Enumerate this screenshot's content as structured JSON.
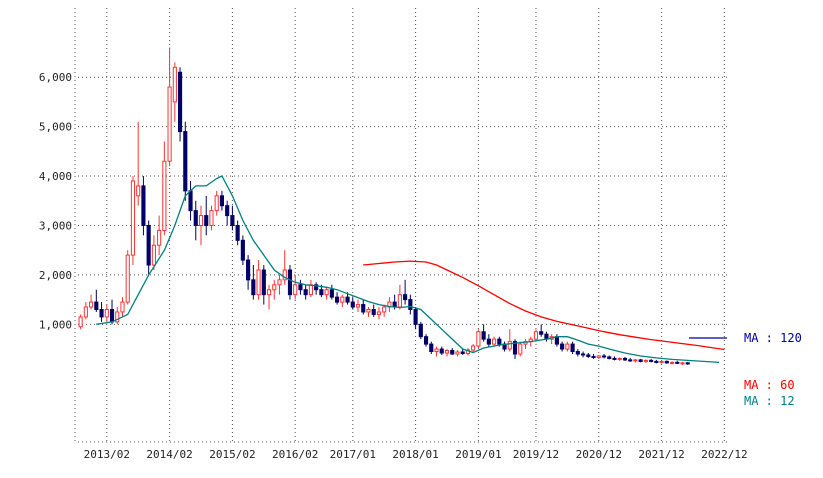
{
  "chart_data": {
    "type": "candlestick",
    "title": "",
    "xlabel": "",
    "ylabel": "",
    "ylim": [
      -1300,
      7400
    ],
    "grid": true,
    "y_ticks": [
      1000,
      2000,
      3000,
      4000,
      5000,
      6000
    ],
    "y_tick_labels": [
      "1,000",
      "2,000",
      "3,000",
      "4,000",
      "5,000",
      "6,000"
    ],
    "x_tick_labels": [
      "2013/02",
      "2014/02",
      "2015/02",
      "2016/02",
      "2017/01",
      "2018/01",
      "2019/01",
      "2019/12",
      "2020/12",
      "2021/12",
      "2022/12"
    ],
    "x_tick_pos": [
      5,
      17,
      29,
      41,
      52,
      64,
      76,
      87,
      99,
      111,
      123
    ],
    "x_range": [
      -0.5,
      123.5
    ],
    "colors": {
      "up": "#ff3333",
      "down": "#000066",
      "ma12": "#008080",
      "ma60": "#ff0000",
      "ma120": "#000099"
    },
    "candles": [
      {
        "o": 950,
        "h": 1200,
        "l": 900,
        "c": 1150
      },
      {
        "o": 1150,
        "h": 1450,
        "l": 1100,
        "c": 1350
      },
      {
        "o": 1350,
        "h": 1600,
        "l": 1300,
        "c": 1450
      },
      {
        "o": 1450,
        "h": 1700,
        "l": 1250,
        "c": 1300
      },
      {
        "o": 1300,
        "h": 1450,
        "l": 1050,
        "c": 1150
      },
      {
        "o": 1150,
        "h": 1400,
        "l": 1050,
        "c": 1300
      },
      {
        "o": 1300,
        "h": 1500,
        "l": 1000,
        "c": 1050
      },
      {
        "o": 1050,
        "h": 1350,
        "l": 1000,
        "c": 1250
      },
      {
        "o": 1250,
        "h": 1550,
        "l": 1150,
        "c": 1450
      },
      {
        "o": 1450,
        "h": 2500,
        "l": 1400,
        "c": 2400
      },
      {
        "o": 2400,
        "h": 4000,
        "l": 2200,
        "c": 3900
      },
      {
        "o": 3600,
        "h": 5100,
        "l": 3400,
        "c": 3800
      },
      {
        "o": 3800,
        "h": 4000,
        "l": 2800,
        "c": 3000
      },
      {
        "o": 3000,
        "h": 3100,
        "l": 2000,
        "c": 2200
      },
      {
        "o": 2200,
        "h": 2800,
        "l": 2100,
        "c": 2600
      },
      {
        "o": 2600,
        "h": 3200,
        "l": 2400,
        "c": 2900
      },
      {
        "o": 2900,
        "h": 4700,
        "l": 2800,
        "c": 4300
      },
      {
        "o": 4300,
        "h": 6600,
        "l": 4200,
        "c": 5800
      },
      {
        "o": 5500,
        "h": 6300,
        "l": 5100,
        "c": 6200
      },
      {
        "o": 6100,
        "h": 6200,
        "l": 4700,
        "c": 4900
      },
      {
        "o": 4900,
        "h": 5100,
        "l": 3500,
        "c": 3700
      },
      {
        "o": 3700,
        "h": 3900,
        "l": 3100,
        "c": 3300
      },
      {
        "o": 3300,
        "h": 3500,
        "l": 2700,
        "c": 3000
      },
      {
        "o": 3000,
        "h": 3400,
        "l": 2600,
        "c": 3200
      },
      {
        "o": 3200,
        "h": 3600,
        "l": 2800,
        "c": 3000
      },
      {
        "o": 3000,
        "h": 3400,
        "l": 2900,
        "c": 3300
      },
      {
        "o": 3300,
        "h": 3700,
        "l": 3200,
        "c": 3600
      },
      {
        "o": 3600,
        "h": 3700,
        "l": 3300,
        "c": 3400
      },
      {
        "o": 3400,
        "h": 3500,
        "l": 3000,
        "c": 3200
      },
      {
        "o": 3200,
        "h": 3400,
        "l": 2900,
        "c": 3000
      },
      {
        "o": 3000,
        "h": 3100,
        "l": 2600,
        "c": 2700
      },
      {
        "o": 2700,
        "h": 2800,
        "l": 2200,
        "c": 2300
      },
      {
        "o": 2300,
        "h": 2400,
        "l": 1700,
        "c": 1900
      },
      {
        "o": 1900,
        "h": 2200,
        "l": 1500,
        "c": 1600
      },
      {
        "o": 1600,
        "h": 2300,
        "l": 1500,
        "c": 2100
      },
      {
        "o": 2100,
        "h": 2200,
        "l": 1400,
        "c": 1600
      },
      {
        "o": 1600,
        "h": 1800,
        "l": 1300,
        "c": 1700
      },
      {
        "o": 1700,
        "h": 1900,
        "l": 1500,
        "c": 1800
      },
      {
        "o": 1800,
        "h": 2000,
        "l": 1600,
        "c": 1900
      },
      {
        "o": 1900,
        "h": 2500,
        "l": 1800,
        "c": 2100
      },
      {
        "o": 2100,
        "h": 2200,
        "l": 1500,
        "c": 1600
      },
      {
        "o": 1600,
        "h": 2000,
        "l": 1500,
        "c": 1800
      },
      {
        "o": 1800,
        "h": 1900,
        "l": 1600,
        "c": 1700
      },
      {
        "o": 1700,
        "h": 1800,
        "l": 1500,
        "c": 1600
      },
      {
        "o": 1600,
        "h": 1900,
        "l": 1550,
        "c": 1800
      },
      {
        "o": 1800,
        "h": 1850,
        "l": 1600,
        "c": 1700
      },
      {
        "o": 1700,
        "h": 1800,
        "l": 1550,
        "c": 1600
      },
      {
        "o": 1600,
        "h": 1750,
        "l": 1500,
        "c": 1700
      },
      {
        "o": 1700,
        "h": 1800,
        "l": 1500,
        "c": 1550
      },
      {
        "o": 1550,
        "h": 1650,
        "l": 1400,
        "c": 1450
      },
      {
        "o": 1450,
        "h": 1600,
        "l": 1350,
        "c": 1550
      },
      {
        "o": 1550,
        "h": 1650,
        "l": 1400,
        "c": 1450
      },
      {
        "o": 1450,
        "h": 1550,
        "l": 1300,
        "c": 1350
      },
      {
        "o": 1350,
        "h": 1500,
        "l": 1250,
        "c": 1400
      },
      {
        "o": 1400,
        "h": 1500,
        "l": 1200,
        "c": 1250
      },
      {
        "o": 1250,
        "h": 1350,
        "l": 1150,
        "c": 1300
      },
      {
        "o": 1300,
        "h": 1400,
        "l": 1150,
        "c": 1200
      },
      {
        "o": 1200,
        "h": 1350,
        "l": 1100,
        "c": 1250
      },
      {
        "o": 1250,
        "h": 1400,
        "l": 1150,
        "c": 1350
      },
      {
        "o": 1350,
        "h": 1550,
        "l": 1250,
        "c": 1450
      },
      {
        "o": 1450,
        "h": 1600,
        "l": 1300,
        "c": 1350
      },
      {
        "o": 1350,
        "h": 1800,
        "l": 1300,
        "c": 1600
      },
      {
        "o": 1600,
        "h": 1900,
        "l": 1400,
        "c": 1500
      },
      {
        "o": 1500,
        "h": 1600,
        "l": 1200,
        "c": 1300
      },
      {
        "o": 1300,
        "h": 1350,
        "l": 900,
        "c": 1000
      },
      {
        "o": 1000,
        "h": 1050,
        "l": 700,
        "c": 750
      },
      {
        "o": 750,
        "h": 800,
        "l": 550,
        "c": 600
      },
      {
        "o": 600,
        "h": 650,
        "l": 400,
        "c": 450
      },
      {
        "o": 450,
        "h": 550,
        "l": 350,
        "c": 500
      },
      {
        "o": 500,
        "h": 550,
        "l": 380,
        "c": 420
      },
      {
        "o": 420,
        "h": 500,
        "l": 350,
        "c": 470
      },
      {
        "o": 470,
        "h": 520,
        "l": 380,
        "c": 400
      },
      {
        "o": 400,
        "h": 480,
        "l": 350,
        "c": 440
      },
      {
        "o": 440,
        "h": 500,
        "l": 380,
        "c": 410
      },
      {
        "o": 410,
        "h": 520,
        "l": 370,
        "c": 480
      },
      {
        "o": 480,
        "h": 600,
        "l": 420,
        "c": 560
      },
      {
        "o": 560,
        "h": 900,
        "l": 520,
        "c": 850
      },
      {
        "o": 850,
        "h": 1000,
        "l": 650,
        "c": 700
      },
      {
        "o": 700,
        "h": 800,
        "l": 550,
        "c": 600
      },
      {
        "o": 600,
        "h": 750,
        "l": 550,
        "c": 700
      },
      {
        "o": 700,
        "h": 750,
        "l": 550,
        "c": 600
      },
      {
        "o": 600,
        "h": 650,
        "l": 450,
        "c": 500
      },
      {
        "o": 500,
        "h": 900,
        "l": 450,
        "c": 650
      },
      {
        "o": 650,
        "h": 700,
        "l": 300,
        "c": 400
      },
      {
        "o": 400,
        "h": 650,
        "l": 350,
        "c": 600
      },
      {
        "o": 600,
        "h": 700,
        "l": 500,
        "c": 650
      },
      {
        "o": 650,
        "h": 750,
        "l": 550,
        "c": 700
      },
      {
        "o": 700,
        "h": 900,
        "l": 650,
        "c": 850
      },
      {
        "o": 850,
        "h": 1000,
        "l": 750,
        "c": 800
      },
      {
        "o": 800,
        "h": 850,
        "l": 650,
        "c": 700
      },
      {
        "o": 700,
        "h": 800,
        "l": 600,
        "c": 750
      },
      {
        "o": 750,
        "h": 800,
        "l": 550,
        "c": 600
      },
      {
        "o": 600,
        "h": 650,
        "l": 450,
        "c": 500
      },
      {
        "o": 500,
        "h": 650,
        "l": 450,
        "c": 600
      },
      {
        "o": 600,
        "h": 650,
        "l": 400,
        "c": 450
      },
      {
        "o": 450,
        "h": 500,
        "l": 350,
        "c": 400
      },
      {
        "o": 400,
        "h": 450,
        "l": 330,
        "c": 380
      },
      {
        "o": 380,
        "h": 420,
        "l": 320,
        "c": 350
      },
      {
        "o": 350,
        "h": 400,
        "l": 300,
        "c": 330
      },
      {
        "o": 330,
        "h": 380,
        "l": 300,
        "c": 360
      },
      {
        "o": 360,
        "h": 400,
        "l": 310,
        "c": 340
      },
      {
        "o": 340,
        "h": 370,
        "l": 290,
        "c": 310
      },
      {
        "o": 310,
        "h": 350,
        "l": 270,
        "c": 290
      },
      {
        "o": 290,
        "h": 330,
        "l": 260,
        "c": 310
      },
      {
        "o": 310,
        "h": 340,
        "l": 260,
        "c": 280
      },
      {
        "o": 280,
        "h": 320,
        "l": 240,
        "c": 260
      },
      {
        "o": 260,
        "h": 300,
        "l": 230,
        "c": 280
      },
      {
        "o": 280,
        "h": 300,
        "l": 230,
        "c": 250
      },
      {
        "o": 250,
        "h": 290,
        "l": 220,
        "c": 270
      },
      {
        "o": 270,
        "h": 300,
        "l": 230,
        "c": 250
      },
      {
        "o": 250,
        "h": 280,
        "l": 210,
        "c": 230
      },
      {
        "o": 230,
        "h": 270,
        "l": 210,
        "c": 250
      },
      {
        "o": 250,
        "h": 270,
        "l": 200,
        "c": 220
      },
      {
        "o": 220,
        "h": 250,
        "l": 190,
        "c": 230
      },
      {
        "o": 230,
        "h": 260,
        "l": 200,
        "c": 210
      },
      {
        "o": 210,
        "h": 240,
        "l": 180,
        "c": 220
      },
      {
        "o": 220,
        "h": 240,
        "l": 180,
        "c": 200
      }
    ],
    "series": [
      {
        "name": "MA : 12",
        "color": "#008080",
        "points": [
          [
            3,
            1000
          ],
          [
            6,
            1050
          ],
          [
            9,
            1200
          ],
          [
            11,
            1600
          ],
          [
            13,
            2000
          ],
          [
            16,
            2500
          ],
          [
            18,
            3000
          ],
          [
            20,
            3600
          ],
          [
            22,
            3800
          ],
          [
            24,
            3800
          ],
          [
            26,
            3950
          ],
          [
            27,
            4000
          ],
          [
            29,
            3600
          ],
          [
            31,
            3100
          ],
          [
            33,
            2700
          ],
          [
            35,
            2400
          ],
          [
            37,
            2100
          ],
          [
            39,
            1950
          ],
          [
            41,
            1850
          ],
          [
            43,
            1800
          ],
          [
            45,
            1780
          ],
          [
            47,
            1750
          ],
          [
            49,
            1700
          ],
          [
            51,
            1620
          ],
          [
            53,
            1540
          ],
          [
            55,
            1460
          ],
          [
            57,
            1400
          ],
          [
            59,
            1360
          ],
          [
            61,
            1340
          ],
          [
            63,
            1360
          ],
          [
            65,
            1300
          ],
          [
            67,
            1100
          ],
          [
            69,
            900
          ],
          [
            71,
            700
          ],
          [
            73,
            500
          ],
          [
            75,
            430
          ],
          [
            77,
            520
          ],
          [
            80,
            580
          ],
          [
            83,
            620
          ],
          [
            86,
            650
          ],
          [
            89,
            700
          ],
          [
            91,
            750
          ],
          [
            93,
            750
          ],
          [
            95,
            680
          ],
          [
            97,
            600
          ],
          [
            99,
            560
          ],
          [
            101,
            500
          ],
          [
            104,
            420
          ],
          [
            107,
            360
          ],
          [
            110,
            320
          ],
          [
            113,
            290
          ],
          [
            116,
            270
          ],
          [
            119,
            250
          ],
          [
            122,
            230
          ]
        ]
      },
      {
        "name": "MA : 60",
        "color": "#ff0000",
        "points": [
          [
            54,
            2200
          ],
          [
            57,
            2230
          ],
          [
            60,
            2260
          ],
          [
            63,
            2280
          ],
          [
            66,
            2260
          ],
          [
            68,
            2200
          ],
          [
            70,
            2100
          ],
          [
            73,
            1950
          ],
          [
            76,
            1780
          ],
          [
            79,
            1600
          ],
          [
            82,
            1420
          ],
          [
            85,
            1270
          ],
          [
            88,
            1150
          ],
          [
            91,
            1060
          ],
          [
            94,
            990
          ],
          [
            97,
            920
          ],
          [
            100,
            850
          ],
          [
            103,
            790
          ],
          [
            106,
            740
          ],
          [
            109,
            690
          ],
          [
            112,
            650
          ],
          [
            115,
            610
          ],
          [
            118,
            570
          ],
          [
            121,
            520
          ],
          [
            123,
            490
          ]
        ]
      },
      {
        "name": "MA : 120",
        "color": "#000099",
        "points": []
      }
    ]
  }
}
